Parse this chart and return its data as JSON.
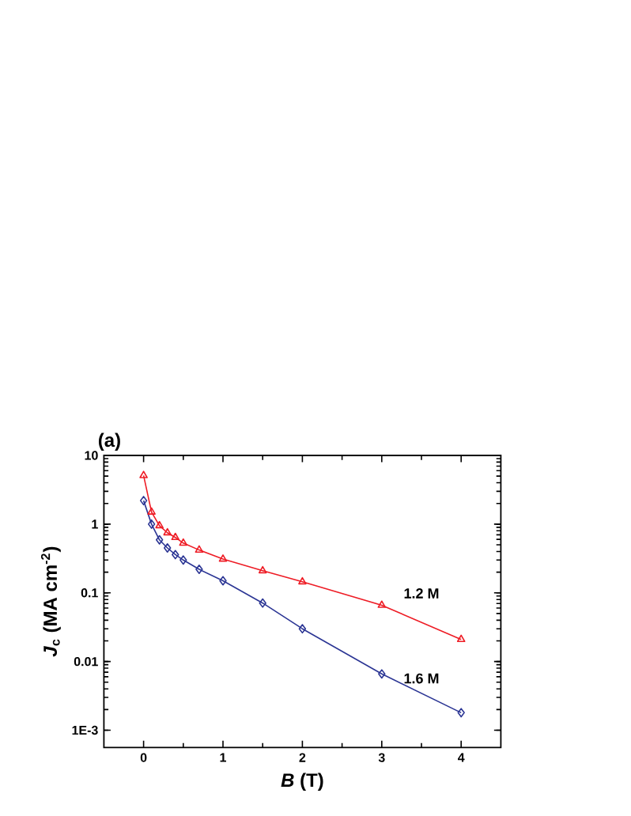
{
  "chart_data": {
    "type": "line",
    "xlabel": "*B* (T)",
    "ylabel": "*J*$_{c}$ (MA cm$^{-2}$)",
    "annotations": [
      "(a)"
    ],
    "xlim": [
      -0.5,
      4.5
    ],
    "xticks": [
      0,
      1,
      2,
      3,
      4
    ],
    "ylim": [
      0.00056,
      10
    ],
    "yticks": [
      {
        "value": 0.001,
        "label": "1E-3"
      },
      0.01,
      0.1,
      1,
      10
    ],
    "log": "y",
    "grid": false,
    "legend": false,
    "line_style": "solid",
    "series": [
      {
        "name": "1.2 M",
        "color": "#ee1c25",
        "marker": "triangle",
        "x": [
          0,
          0.1,
          0.2,
          0.3,
          0.4,
          0.5,
          0.7,
          1,
          1.5,
          2,
          3,
          4
        ],
        "values": [
          5.1,
          1.5,
          0.95,
          0.75,
          0.64,
          0.53,
          0.42,
          0.31,
          0.21,
          0.145,
          0.066,
          0.021
        ]
      },
      {
        "name": "1.6 M",
        "color": "#2b3594",
        "marker": "diamond",
        "x": [
          0,
          0.1,
          0.2,
          0.3,
          0.4,
          0.5,
          0.7,
          1,
          1.5,
          2,
          3,
          4
        ],
        "values": [
          2.2,
          1.0,
          0.59,
          0.45,
          0.36,
          0.3,
          0.22,
          0.15,
          0.071,
          0.03,
          0.0066,
          0.0018
        ]
      }
    ]
  }
}
